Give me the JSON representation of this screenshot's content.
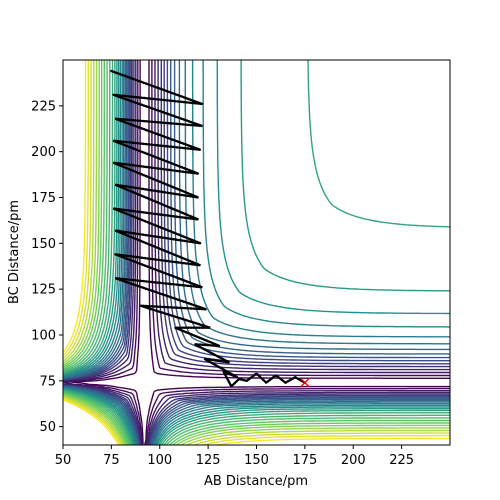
{
  "chart_data": {
    "type": "contour",
    "xlabel": "AB Distance/pm",
    "ylabel": "BC Distance/pm",
    "xlim": [
      50,
      250
    ],
    "ylim": [
      40,
      250
    ],
    "x_ticks": [
      50,
      75,
      100,
      125,
      150,
      175,
      200,
      225
    ],
    "y_ticks": [
      50,
      75,
      100,
      125,
      150,
      175,
      200,
      225
    ],
    "colormap": [
      "#440154",
      "#3b528b",
      "#21918c",
      "#5ec962",
      "#fde725"
    ],
    "grid": false,
    "legend": "none",
    "surface": {
      "description": "potential energy surface contours (viridis); reactant valley along x ~ 90, product valley along y ~ 74",
      "reactant_valley_x": 92,
      "product_valley_y": 74,
      "levels": [
        0.05,
        0.12,
        0.22,
        0.34,
        0.48,
        0.62,
        0.78,
        0.95,
        1.15,
        1.4,
        1.7,
        2.05,
        2.5,
        3.0,
        3.6,
        4.3,
        5.2,
        6.3,
        7.6,
        9.2,
        11.0,
        13.0,
        15.5,
        18.5,
        22.0,
        26.0,
        31.0
      ]
    },
    "trajectory": {
      "color": "#000000",
      "points": [
        [
          75,
          244
        ],
        [
          122,
          226
        ],
        [
          76,
          231
        ],
        [
          122,
          214
        ],
        [
          77,
          218
        ],
        [
          121,
          201
        ],
        [
          76,
          206
        ],
        [
          120,
          188
        ],
        [
          76,
          194
        ],
        [
          120,
          175
        ],
        [
          77,
          182
        ],
        [
          120,
          163
        ],
        [
          76,
          169
        ],
        [
          121,
          150
        ],
        [
          77,
          157
        ],
        [
          121,
          138
        ],
        [
          77,
          144
        ],
        [
          122,
          126
        ],
        [
          77,
          131
        ],
        [
          124,
          114
        ],
        [
          90,
          116
        ],
        [
          126,
          104
        ],
        [
          108,
          104
        ],
        [
          131,
          94
        ],
        [
          118,
          95
        ],
        [
          136,
          85
        ],
        [
          123,
          87
        ],
        [
          140,
          77
        ],
        [
          133,
          80
        ],
        [
          137,
          72
        ],
        [
          141,
          76
        ],
        [
          145,
          75
        ],
        [
          150,
          79
        ],
        [
          155,
          74
        ],
        [
          160,
          78
        ],
        [
          165,
          74
        ],
        [
          170,
          77
        ],
        [
          175,
          74
        ]
      ]
    },
    "end_marker": {
      "x": 175,
      "y": 74,
      "symbol": "x",
      "color": "#ff0000"
    }
  }
}
